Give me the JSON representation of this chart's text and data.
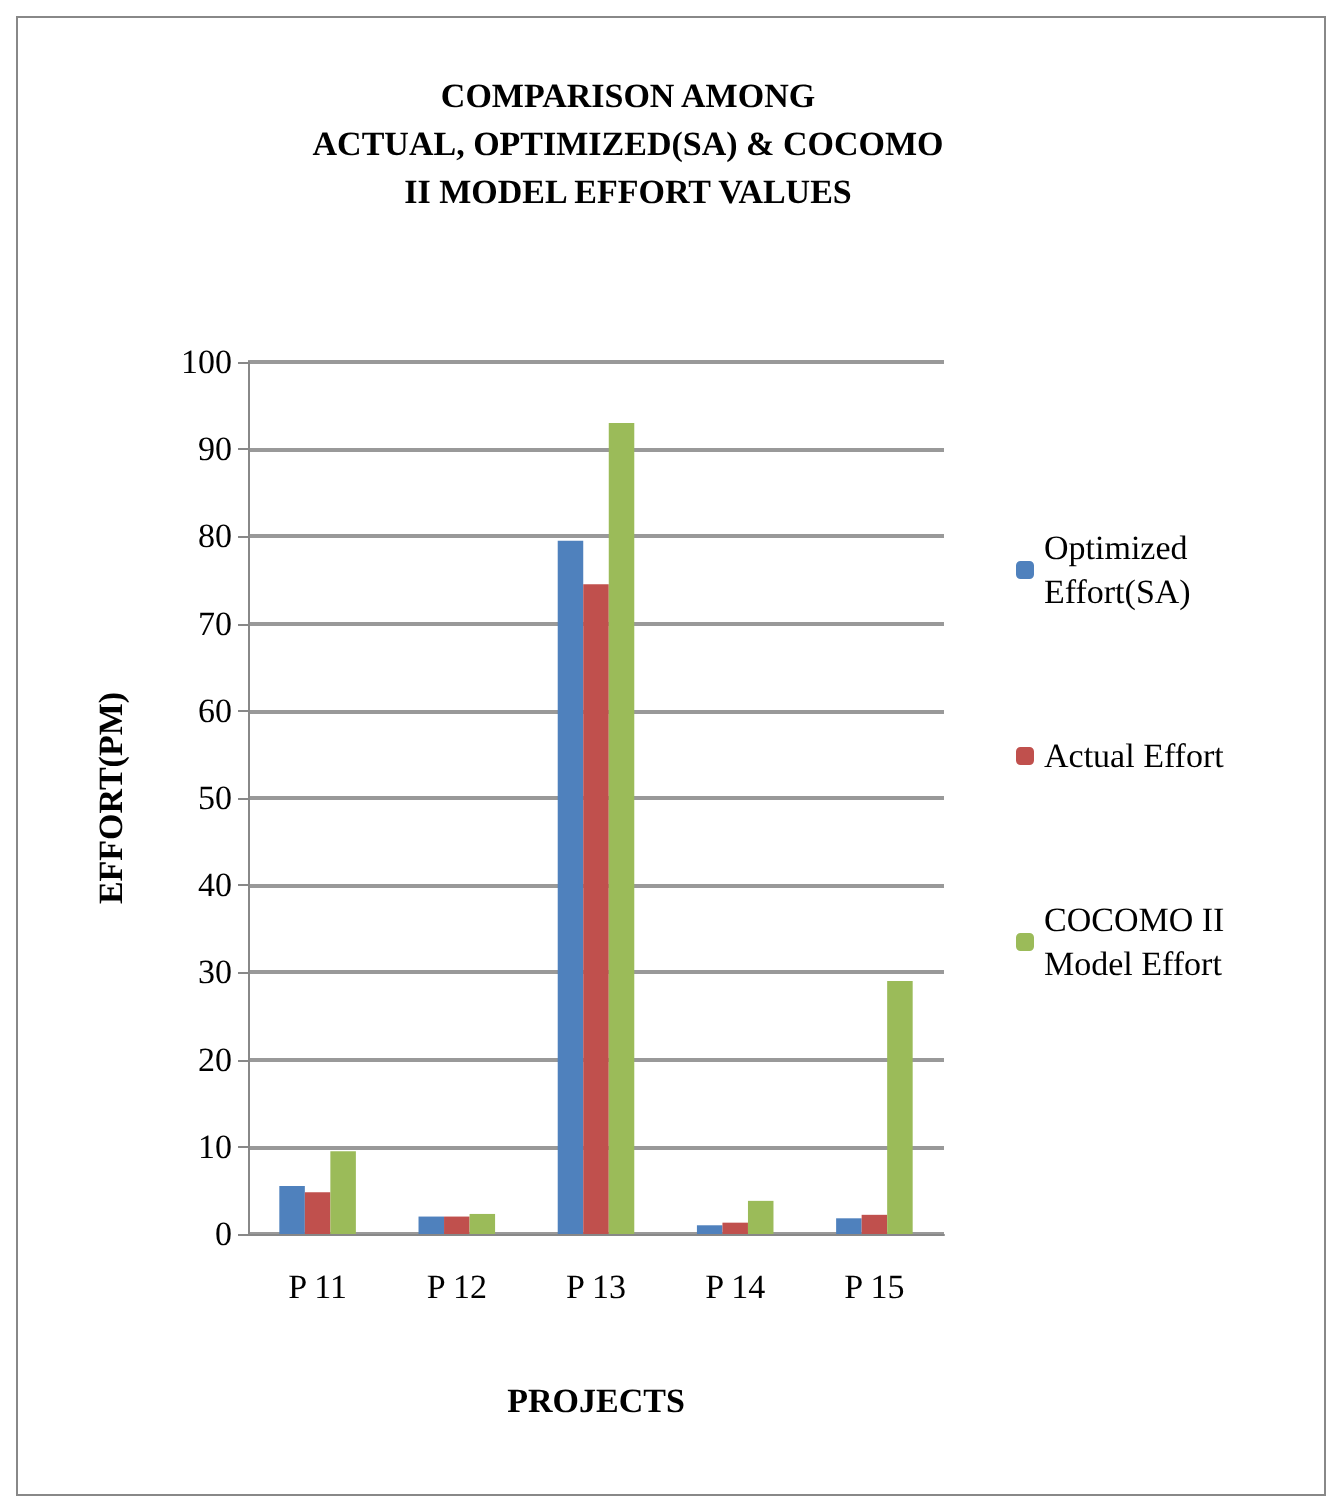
{
  "chart_data": {
    "type": "bar",
    "title": "COMPARISON AMONG\nACTUAL, OPTIMIZED(SA) & COCOMO\nII MODEL EFFORT VALUES",
    "xlabel": "PROJECTS",
    "ylabel": "EFFORT(PM)",
    "categories": [
      "P 11",
      "P 12",
      "P 13",
      "P 14",
      "P 15"
    ],
    "series": [
      {
        "name": "Optimized Effort(SA)",
        "color": "#4f81bd",
        "values": [
          5.5,
          2,
          79.5,
          1,
          1.8
        ]
      },
      {
        "name": "Actual Effort",
        "color": "#c0504d",
        "values": [
          4.8,
          2,
          74.5,
          1.3,
          2.2
        ]
      },
      {
        "name": "COCOMO II Model Effort",
        "color": "#9bbb59",
        "values": [
          9.5,
          2.3,
          93,
          3.8,
          29
        ]
      }
    ],
    "ylim": [
      0,
      100
    ],
    "yticks": [
      0,
      10,
      20,
      30,
      40,
      50,
      60,
      70,
      80,
      90,
      100
    ],
    "grid": "y",
    "legend": "right"
  }
}
